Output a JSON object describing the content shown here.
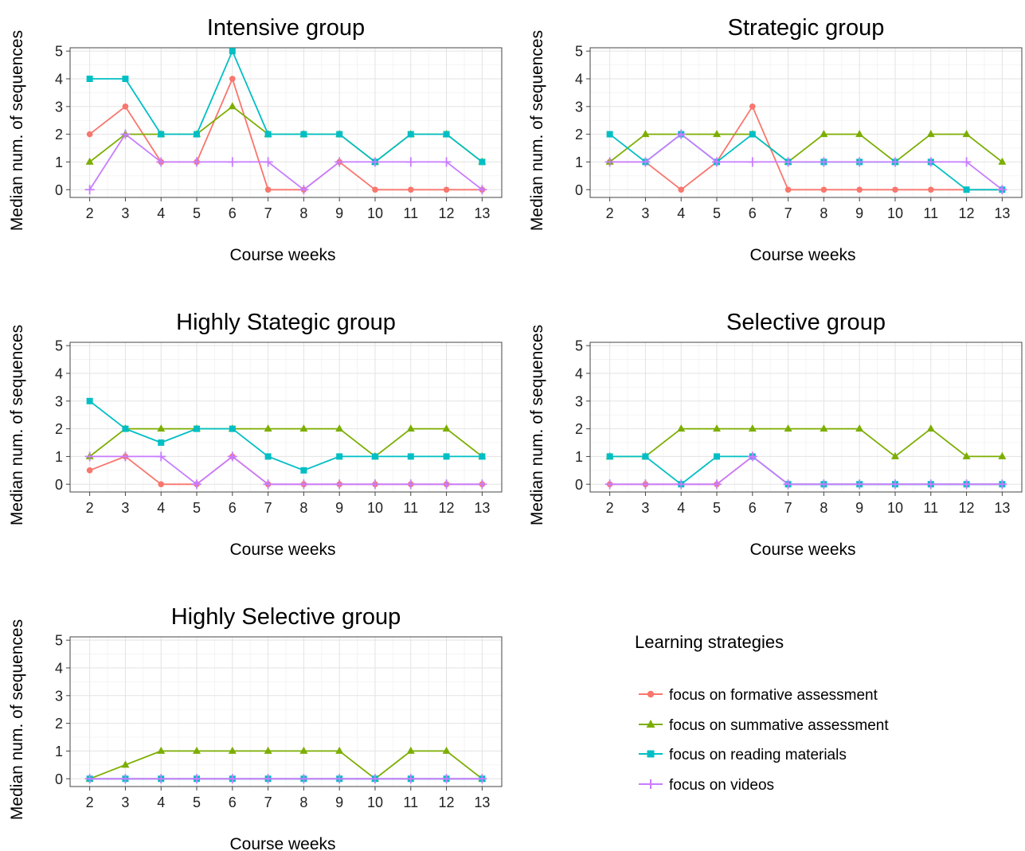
{
  "legend": {
    "title": "Learning strategies",
    "items": [
      {
        "label": "focus on formative assessment",
        "color": "#F8766D",
        "marker": "circle"
      },
      {
        "label": "focus on summative assessment",
        "color": "#7CAE00",
        "marker": "triangle"
      },
      {
        "label": "focus on reading materials",
        "color": "#00BFC4",
        "marker": "square"
      },
      {
        "label": "focus on videos",
        "color": "#C77CFF",
        "marker": "plus"
      }
    ]
  },
  "chart_data": [
    {
      "type": "line",
      "title": "Intensive group",
      "xlabel": "Course weeks",
      "ylabel": "Median num. of sequences",
      "x": [
        2,
        3,
        4,
        5,
        6,
        7,
        8,
        9,
        10,
        11,
        12,
        13
      ],
      "xlim": [
        2,
        13
      ],
      "ylim": [
        0,
        5
      ],
      "yticks": [
        0,
        1,
        2,
        3,
        4,
        5
      ],
      "grid": true,
      "series": [
        {
          "name": "focus on formative assessment",
          "values": [
            2,
            3,
            1,
            1,
            4,
            0,
            0,
            1,
            0,
            0,
            0,
            0
          ]
        },
        {
          "name": "focus on summative assessment",
          "values": [
            1,
            2,
            2,
            2,
            3,
            2,
            2,
            2,
            1,
            2,
            2,
            1
          ]
        },
        {
          "name": "focus on reading materials",
          "values": [
            4,
            4,
            2,
            2,
            5,
            2,
            2,
            2,
            1,
            2,
            2,
            1
          ]
        },
        {
          "name": "focus on videos",
          "values": [
            0,
            2,
            1,
            1,
            1,
            1,
            0,
            1,
            1,
            1,
            1,
            0
          ]
        }
      ]
    },
    {
      "type": "line",
      "title": "Strategic group",
      "xlabel": "Course weeks",
      "ylabel": "Median num. of sequences",
      "x": [
        2,
        3,
        4,
        5,
        6,
        7,
        8,
        9,
        10,
        11,
        12,
        13
      ],
      "xlim": [
        2,
        13
      ],
      "ylim": [
        0,
        5
      ],
      "yticks": [
        0,
        1,
        2,
        3,
        4,
        5
      ],
      "grid": true,
      "series": [
        {
          "name": "focus on formative assessment",
          "values": [
            1,
            1,
            0,
            1,
            3,
            0,
            0,
            0,
            0,
            0,
            0,
            0
          ]
        },
        {
          "name": "focus on summative assessment",
          "values": [
            1,
            2,
            2,
            2,
            2,
            1,
            2,
            2,
            1,
            2,
            2,
            1
          ]
        },
        {
          "name": "focus on reading materials",
          "values": [
            2,
            1,
            2,
            1,
            2,
            1,
            1,
            1,
            1,
            1,
            0,
            0
          ]
        },
        {
          "name": "focus on videos",
          "values": [
            1,
            1,
            2,
            1,
            1,
            1,
            1,
            1,
            1,
            1,
            1,
            0
          ]
        }
      ]
    },
    {
      "type": "line",
      "title": "Highly Stategic group",
      "xlabel": "Course weeks",
      "ylabel": "Median num. of sequences",
      "x": [
        2,
        3,
        4,
        5,
        6,
        7,
        8,
        9,
        10,
        11,
        12,
        13
      ],
      "xlim": [
        2,
        13
      ],
      "ylim": [
        0,
        5
      ],
      "yticks": [
        0,
        1,
        2,
        3,
        4,
        5
      ],
      "grid": true,
      "series": [
        {
          "name": "focus on formative assessment",
          "values": [
            0.5,
            1,
            0,
            0,
            1,
            0,
            0,
            0,
            0,
            0,
            0,
            0
          ]
        },
        {
          "name": "focus on summative assessment",
          "values": [
            1,
            2,
            2,
            2,
            2,
            2,
            2,
            2,
            1,
            2,
            2,
            1
          ]
        },
        {
          "name": "focus on reading materials",
          "values": [
            3,
            2,
            1.5,
            2,
            2,
            1,
            0.5,
            1,
            1,
            1,
            1,
            1
          ]
        },
        {
          "name": "focus on videos",
          "values": [
            1,
            1,
            1,
            0,
            1,
            0,
            0,
            0,
            0,
            0,
            0,
            0
          ]
        }
      ]
    },
    {
      "type": "line",
      "title": "Selective group",
      "xlabel": "Course weeks",
      "ylabel": "Median num. of sequences",
      "x": [
        2,
        3,
        4,
        5,
        6,
        7,
        8,
        9,
        10,
        11,
        12,
        13
      ],
      "xlim": [
        2,
        13
      ],
      "ylim": [
        0,
        5
      ],
      "yticks": [
        0,
        1,
        2,
        3,
        4,
        5
      ],
      "grid": true,
      "series": [
        {
          "name": "focus on formative assessment",
          "values": [
            0,
            0,
            0,
            0,
            1,
            0,
            0,
            0,
            0,
            0,
            0,
            0
          ]
        },
        {
          "name": "focus on summative assessment",
          "values": [
            1,
            1,
            2,
            2,
            2,
            2,
            2,
            2,
            1,
            2,
            1,
            1
          ]
        },
        {
          "name": "focus on reading materials",
          "values": [
            1,
            1,
            0,
            1,
            1,
            0,
            0,
            0,
            0,
            0,
            0,
            0
          ]
        },
        {
          "name": "focus on videos",
          "values": [
            0,
            0,
            0,
            0,
            1,
            0,
            0,
            0,
            0,
            0,
            0,
            0
          ]
        }
      ]
    },
    {
      "type": "line",
      "title": "Highly Selective group",
      "xlabel": "Course weeks",
      "ylabel": "Median num. of sequences",
      "x": [
        2,
        3,
        4,
        5,
        6,
        7,
        8,
        9,
        10,
        11,
        12,
        13
      ],
      "xlim": [
        2,
        13
      ],
      "ylim": [
        0,
        5
      ],
      "yticks": [
        0,
        1,
        2,
        3,
        4,
        5
      ],
      "grid": true,
      "series": [
        {
          "name": "focus on formative assessment",
          "values": [
            0,
            0,
            0,
            0,
            0,
            0,
            0,
            0,
            0,
            0,
            0,
            0
          ]
        },
        {
          "name": "focus on summative assessment",
          "values": [
            0,
            0.5,
            1,
            1,
            1,
            1,
            1,
            1,
            0,
            1,
            1,
            0
          ]
        },
        {
          "name": "focus on reading materials",
          "values": [
            0,
            0,
            0,
            0,
            0,
            0,
            0,
            0,
            0,
            0,
            0,
            0
          ]
        },
        {
          "name": "focus on videos",
          "values": [
            0,
            0,
            0,
            0,
            0,
            0,
            0,
            0,
            0,
            0,
            0,
            0
          ]
        }
      ]
    }
  ]
}
